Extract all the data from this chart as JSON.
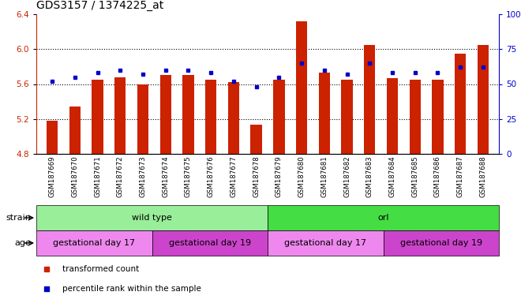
{
  "title": "GDS3157 / 1374225_at",
  "samples": [
    "GSM187669",
    "GSM187670",
    "GSM187671",
    "GSM187672",
    "GSM187673",
    "GSM187674",
    "GSM187675",
    "GSM187676",
    "GSM187677",
    "GSM187678",
    "GSM187679",
    "GSM187680",
    "GSM187681",
    "GSM187682",
    "GSM187683",
    "GSM187684",
    "GSM187685",
    "GSM187686",
    "GSM187687",
    "GSM187688"
  ],
  "transformed_count": [
    5.18,
    5.34,
    5.65,
    5.68,
    5.6,
    5.7,
    5.7,
    5.65,
    5.62,
    5.13,
    5.65,
    6.32,
    5.73,
    5.65,
    6.05,
    5.67,
    5.65,
    5.65,
    5.95,
    6.05
  ],
  "percentile_rank": [
    52,
    55,
    58,
    60,
    57,
    60,
    60,
    58,
    52,
    48,
    55,
    65,
    60,
    57,
    65,
    58,
    58,
    58,
    62,
    62
  ],
  "ylim_left": [
    4.8,
    6.4
  ],
  "ylim_right": [
    0,
    100
  ],
  "yticks_left": [
    4.8,
    5.2,
    5.6,
    6.0,
    6.4
  ],
  "yticks_right": [
    0,
    25,
    50,
    75,
    100
  ],
  "bar_color": "#cc2200",
  "dot_color": "#0000cc",
  "bar_bottom": 4.8,
  "strain_groups": [
    {
      "label": "wild type",
      "start": 0,
      "end": 10,
      "color": "#99ee99"
    },
    {
      "label": "orl",
      "start": 10,
      "end": 20,
      "color": "#44dd44"
    }
  ],
  "age_groups": [
    {
      "label": "gestational day 17",
      "start": 0,
      "end": 5,
      "color": "#ee88ee"
    },
    {
      "label": "gestational day 19",
      "start": 5,
      "end": 10,
      "color": "#cc44cc"
    },
    {
      "label": "gestational day 17",
      "start": 10,
      "end": 15,
      "color": "#ee88ee"
    },
    {
      "label": "gestational day 19",
      "start": 15,
      "end": 20,
      "color": "#cc44cc"
    }
  ],
  "legend_items": [
    {
      "label": "transformed count",
      "color": "#cc2200"
    },
    {
      "label": "percentile rank within the sample",
      "color": "#0000cc"
    }
  ],
  "grid_yticks": [
    5.2,
    5.6,
    6.0
  ],
  "tick_fontsize": 7.5,
  "title_fontsize": 10,
  "label_fontsize": 8,
  "bar_width": 0.5,
  "xticklabel_fontsize": 6.2,
  "dot_size": 3.5,
  "xtick_bg": "#d8d8d8"
}
